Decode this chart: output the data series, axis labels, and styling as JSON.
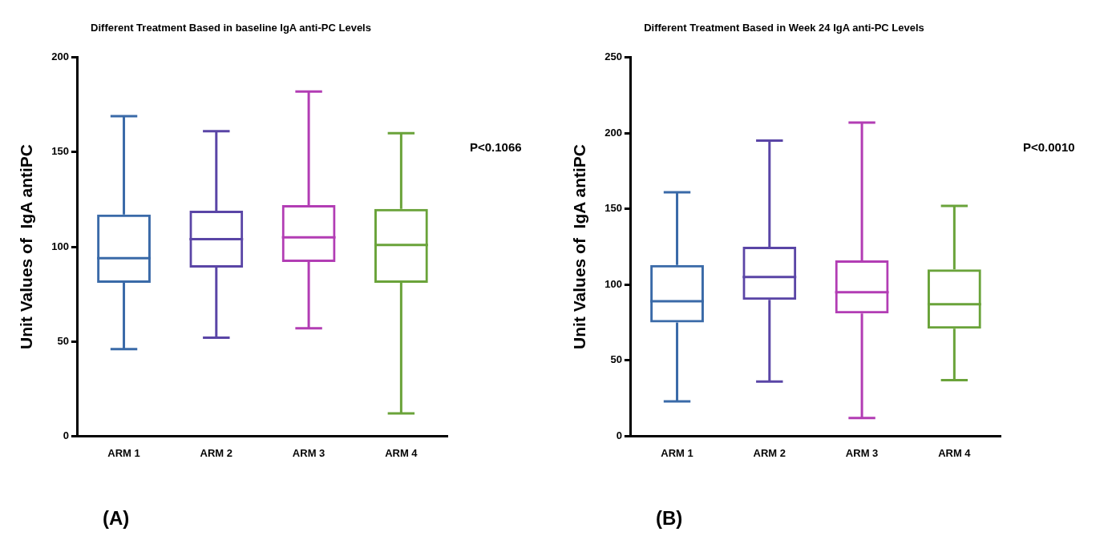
{
  "chart_data": [
    {
      "type": "box",
      "title": "Different Treatment Based in baseline IgA anti-PC Levels",
      "ylabel": "Unit Values of  IgA antiPC",
      "categories": [
        "ARM 1",
        "ARM 2",
        "ARM 3",
        "ARM 4"
      ],
      "colors": [
        "#3a6aa8",
        "#5a45a6",
        "#b23db4",
        "#6aa33a"
      ],
      "boxes": [
        {
          "low": 46,
          "q1": 81,
          "median": 94,
          "q3": 117,
          "high": 169
        },
        {
          "low": 52,
          "q1": 89,
          "median": 104,
          "q3": 119,
          "high": 161
        },
        {
          "low": 57,
          "q1": 92,
          "median": 105,
          "q3": 122,
          "high": 182
        },
        {
          "low": 12,
          "q1": 81,
          "median": 101,
          "q3": 120,
          "high": 160
        }
      ],
      "ylim": [
        0,
        200
      ],
      "yticks": [
        0,
        50,
        100,
        150,
        200
      ],
      "grid": false,
      "legend": false,
      "annotations": [
        "P<0.1066",
        "(A)"
      ]
    },
    {
      "type": "box",
      "title": "Different Treatment Based in Week 24 IgA anti-PC Levels",
      "ylabel": "Unit Values of  IgA antiPC",
      "categories": [
        "ARM 1",
        "ARM 2",
        "ARM 3",
        "ARM 4"
      ],
      "colors": [
        "#3a6aa8",
        "#5a45a6",
        "#b23db4",
        "#6aa33a"
      ],
      "boxes": [
        {
          "low": 23,
          "q1": 75,
          "median": 89,
          "q3": 113,
          "high": 161
        },
        {
          "low": 36,
          "q1": 90,
          "median": 105,
          "q3": 125,
          "high": 195
        },
        {
          "low": 12,
          "q1": 81,
          "median": 95,
          "q3": 116,
          "high": 207
        },
        {
          "low": 37,
          "q1": 71,
          "median": 87,
          "q3": 110,
          "high": 152
        }
      ],
      "ylim": [
        0,
        250
      ],
      "yticks": [
        0,
        50,
        100,
        150,
        200,
        250
      ],
      "grid": false,
      "legend": false,
      "annotations": [
        "P<0.0010",
        "(B)"
      ]
    }
  ]
}
